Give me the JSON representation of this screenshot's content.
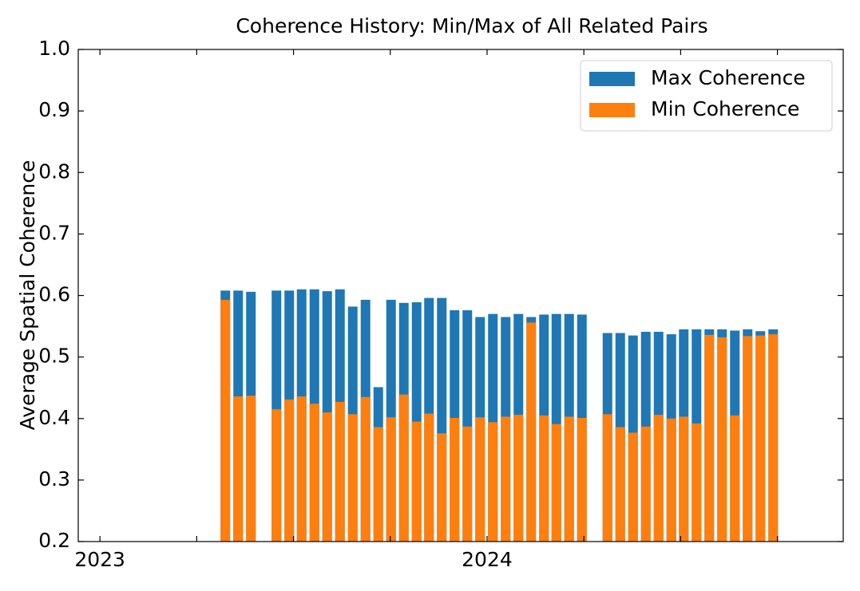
{
  "chart_data": {
    "type": "bar",
    "title": "Coherence History: Min/Max of All Related Pairs",
    "y_label": "Average Spatial Coherence",
    "x": [
      2023.324,
      2023.357,
      2023.39,
      2023.456,
      2023.489,
      2023.521,
      2023.554,
      2023.587,
      2023.62,
      2023.653,
      2023.686,
      2023.719,
      2023.752,
      2023.785,
      2023.818,
      2023.85,
      2023.883,
      2023.916,
      2023.949,
      2023.982,
      2024.015,
      2024.048,
      2024.081,
      2024.114,
      2024.147,
      2024.179,
      2024.212,
      2024.245,
      2024.311,
      2024.344,
      2024.377,
      2024.41,
      2024.443,
      2024.476,
      2024.508,
      2024.541,
      2024.574,
      2024.607,
      2024.64,
      2024.673,
      2024.706,
      2024.739
    ],
    "series": [
      {
        "name": "Max Coherence",
        "color": "#1f77b4",
        "values": [
          0.608,
          0.608,
          0.606,
          0.608,
          0.608,
          0.61,
          0.61,
          0.607,
          0.61,
          0.582,
          0.593,
          0.451,
          0.593,
          0.588,
          0.589,
          0.596,
          0.596,
          0.576,
          0.576,
          0.565,
          0.57,
          0.565,
          0.57,
          0.565,
          0.569,
          0.57,
          0.57,
          0.569,
          0.539,
          0.539,
          0.535,
          0.541,
          0.541,
          0.537,
          0.545,
          0.545,
          0.545,
          0.545,
          0.543,
          0.545,
          0.542,
          0.545
        ]
      },
      {
        "name": "Min Coherence",
        "color": "#ff7f0e",
        "values": [
          0.593,
          0.436,
          0.437,
          0.415,
          0.431,
          0.436,
          0.424,
          0.41,
          0.427,
          0.407,
          0.435,
          0.386,
          0.402,
          0.439,
          0.395,
          0.408,
          0.376,
          0.401,
          0.387,
          0.402,
          0.394,
          0.403,
          0.406,
          0.556,
          0.405,
          0.391,
          0.403,
          0.401,
          0.407,
          0.386,
          0.377,
          0.387,
          0.406,
          0.4,
          0.403,
          0.392,
          0.536,
          0.532,
          0.405,
          0.534,
          0.535,
          0.537
        ]
      }
    ],
    "xlim": [
      2022.944,
      2024.92
    ],
    "xticks": [
      2023,
      2024
    ],
    "xminorticks": [
      2023.25,
      2023.5,
      2023.75,
      2024.25,
      2024.5,
      2024.75
    ],
    "ylim": [
      0.2,
      1.0
    ],
    "yticks": [
      0.2,
      0.3,
      0.4,
      0.5,
      0.6,
      0.7,
      0.8,
      0.9,
      {
        "value": 1.0,
        "label": "1.0"
      }
    ],
    "legend": "upper right",
    "grid": false
  }
}
